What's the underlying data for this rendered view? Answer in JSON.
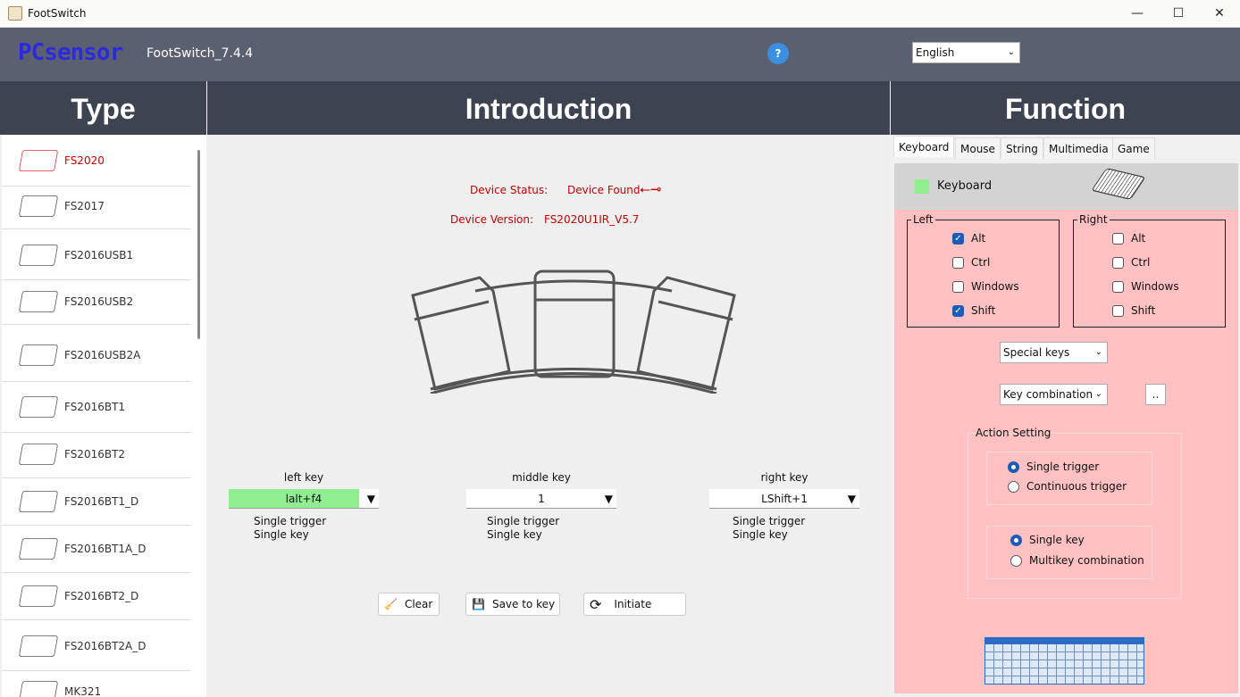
{
  "window": {
    "title": "FootSwitch",
    "controls": [
      "—",
      "☐",
      "✕"
    ]
  },
  "header": {
    "logo": "PCsensor",
    "app_version": "FootSwitch_7.4.4",
    "language": "English"
  },
  "sections": {
    "type": "Type",
    "introduction": "Introduction",
    "function": "Function"
  },
  "sidebar": {
    "items": [
      {
        "label": "FS2020",
        "selected": true
      },
      {
        "label": "FS2017"
      },
      {
        "label": "FS2016USB1"
      },
      {
        "label": "FS2016USB2"
      },
      {
        "label": "FS2016USB2A"
      },
      {
        "label": "FS2016BT1"
      },
      {
        "label": "FS2016BT2"
      },
      {
        "label": "FS2016BT1_D"
      },
      {
        "label": "FS2016BT1A_D"
      },
      {
        "label": "FS2016BT2_D"
      },
      {
        "label": "FS2016BT2A_D"
      },
      {
        "label": "MK321"
      }
    ]
  },
  "intro": {
    "status_label": "Device Status:",
    "status_value": "Device Found",
    "version_label": "Device Version:",
    "version_value": "FS2020U1IR_V5.7",
    "keys": [
      {
        "title": "left key",
        "value": "lalt+f4",
        "trigger": "Single trigger",
        "mode": "Single key",
        "active": true
      },
      {
        "title": "middle key",
        "value": "1",
        "trigger": "Single trigger",
        "mode": "Single key"
      },
      {
        "title": "right key",
        "value": "LShift+1",
        "trigger": "Single trigger",
        "mode": "Single key"
      }
    ],
    "buttons": {
      "clear": "Clear",
      "save": "Save to key",
      "initiate": "Initiate"
    }
  },
  "function": {
    "tabs": [
      "Keyboard",
      "Mouse",
      "String",
      "Multimedia",
      "Game"
    ],
    "active_tab": "Keyboard",
    "mode_label": "Keyboard",
    "mode_color": "#90ee90",
    "left": {
      "legend": "Left",
      "options": [
        {
          "label": "Alt",
          "checked": true
        },
        {
          "label": "Ctrl",
          "checked": false
        },
        {
          "label": "Windows",
          "checked": false
        },
        {
          "label": "Shift",
          "checked": true
        }
      ]
    },
    "right": {
      "legend": "Right",
      "options": [
        {
          "label": "Alt",
          "checked": false
        },
        {
          "label": "Ctrl",
          "checked": false
        },
        {
          "label": "Windows",
          "checked": false
        },
        {
          "label": "Shift",
          "checked": false
        }
      ]
    },
    "special_keys": "Special keys",
    "key_combination": "Key combination",
    "more_button": "..",
    "action_setting": "Action Setting",
    "trigger_options": [
      {
        "label": "Single trigger",
        "selected": true
      },
      {
        "label": "Continuous trigger",
        "selected": false
      }
    ],
    "key_options": [
      {
        "label": "Single key",
        "selected": true
      },
      {
        "label": "Multikey  combination",
        "selected": false
      }
    ]
  },
  "colors": {
    "header": "#5b6070",
    "section": "#3d4350",
    "pink": "#ffc1c1",
    "active_key": "#90ee90",
    "status_red": "#c00000"
  }
}
